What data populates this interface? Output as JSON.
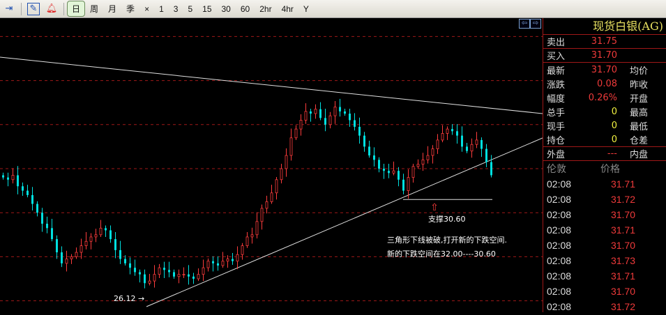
{
  "toolbar": {
    "periods": [
      "日",
      "周",
      "月",
      "季",
      "×",
      "1",
      "3",
      "5",
      "15",
      "30",
      "60",
      "2hr",
      "4hr",
      "Y"
    ],
    "active": "日"
  },
  "quote": {
    "title": "现货白银(AG)",
    "sell_label": "卖出",
    "sell": "31.75",
    "buy_label": "买入",
    "buy": "31.70",
    "rows": [
      {
        "l": "最新",
        "v": "31.70",
        "r": "均价",
        "c": "red"
      },
      {
        "l": "涨跌",
        "v": "0.08",
        "r": "昨收",
        "c": "red"
      },
      {
        "l": "幅度",
        "v": "0.26%",
        "r": "开盘",
        "c": "red"
      },
      {
        "l": "总手",
        "v": "0",
        "r": "最高",
        "c": "yel"
      },
      {
        "l": "现手",
        "v": "0",
        "r": "最低",
        "c": "yel"
      },
      {
        "l": "持仓",
        "v": "0",
        "r": "仓差",
        "c": "yel"
      }
    ],
    "outer_label": "外盘",
    "outer": "---",
    "inner_label": "内盘",
    "ticks_header": {
      "time": "伦敦",
      "price": "价格"
    },
    "ticks": [
      {
        "time": "02:08",
        "price": "31.71"
      },
      {
        "time": "02:08",
        "price": "31.72"
      },
      {
        "time": "02:08",
        "price": "31.70"
      },
      {
        "time": "02:08",
        "price": "31.71"
      },
      {
        "time": "02:08",
        "price": "31.70"
      },
      {
        "time": "02:08",
        "price": "31.73"
      },
      {
        "time": "02:08",
        "price": "31.71"
      },
      {
        "time": "02:08",
        "price": "31.70"
      },
      {
        "time": "02:08",
        "price": "31.72"
      }
    ]
  },
  "chart_data": {
    "type": "candlestick",
    "grid_levels": [
      26,
      28,
      30,
      32,
      34,
      36,
      38
    ],
    "closes": [
      31.6,
      31.5,
      31.7,
      31.2,
      31.0,
      30.8,
      30.4,
      30.0,
      29.5,
      29.3,
      28.8,
      28.2,
      27.7,
      27.9,
      28.0,
      28.2,
      28.5,
      28.7,
      28.9,
      29.0,
      29.3,
      29.2,
      28.8,
      28.3,
      27.9,
      27.7,
      27.5,
      27.3,
      27.2,
      26.8,
      26.9,
      27.2,
      27.5,
      27.4,
      27.3,
      27.1,
      27.2,
      27.2,
      27.1,
      27.0,
      27.2,
      27.5,
      27.8,
      27.7,
      27.6,
      27.8,
      27.9,
      27.8,
      28.1,
      28.5,
      28.9,
      29.0,
      29.6,
      30.2,
      30.5,
      30.9,
      31.5,
      32.0,
      32.6,
      33.4,
      33.8,
      34.2,
      34.6,
      34.5,
      34.7,
      34.3,
      34.0,
      34.4,
      34.8,
      34.6,
      34.5,
      34.2,
      33.9,
      33.5,
      33.0,
      32.6,
      32.4,
      32.0,
      31.9,
      31.8,
      31.9,
      31.5,
      31.0,
      31.6,
      32.1,
      32.2,
      32.4,
      32.6,
      32.9,
      33.3,
      33.6,
      33.8,
      33.7,
      33.5,
      33.0,
      32.8,
      33.1,
      33.3,
      32.9,
      32.3,
      31.7
    ],
    "low_label": "26.12",
    "support_label": "支撑30.60",
    "support": 30.6,
    "annotation1": "三角形下线被破,打开新的下跌空间.",
    "annotation2": "新的下跌空间在32.00----30.60",
    "colors": {
      "up": "#ff3c3c",
      "down": "#00e0e0",
      "grid": "#a01818",
      "line": "#e0e0e0"
    }
  }
}
